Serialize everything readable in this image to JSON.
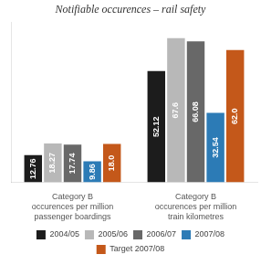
{
  "chart_data": {
    "type": "bar",
    "title": "Notifiable occurences – rail safety",
    "categories": [
      "Category B\noccurences per million\npassenger boardings",
      "Category B\noccurences per million\ntrain kilometres"
    ],
    "series": [
      {
        "name": "2004/05",
        "color": "#1c1c1c",
        "values": [
          12.76,
          52.12
        ],
        "value_labels": [
          "12.76",
          "52.12"
        ]
      },
      {
        "name": "2005/06",
        "color": "#b8b8b8",
        "values": [
          18.27,
          67.6
        ],
        "value_labels": [
          "18.27",
          "67.6"
        ]
      },
      {
        "name": "2006/07",
        "color": "#686868",
        "values": [
          17.74,
          66.08
        ],
        "value_labels": [
          "17.74",
          "66.08"
        ]
      },
      {
        "name": "2007/08",
        "color": "#2c7bb6",
        "values": [
          9.86,
          32.54
        ],
        "value_labels": [
          "9.86",
          "32.54"
        ]
      },
      {
        "name": "Target 2007/08",
        "color": "#c4581a",
        "values": [
          18.0,
          62.0
        ],
        "value_labels": [
          "18.0",
          "62.0"
        ]
      }
    ],
    "ylim": [
      0,
      75
    ],
    "yticks": [],
    "grid": false,
    "legend": "bottom",
    "data_labels": true,
    "tick_labels": "x"
  }
}
